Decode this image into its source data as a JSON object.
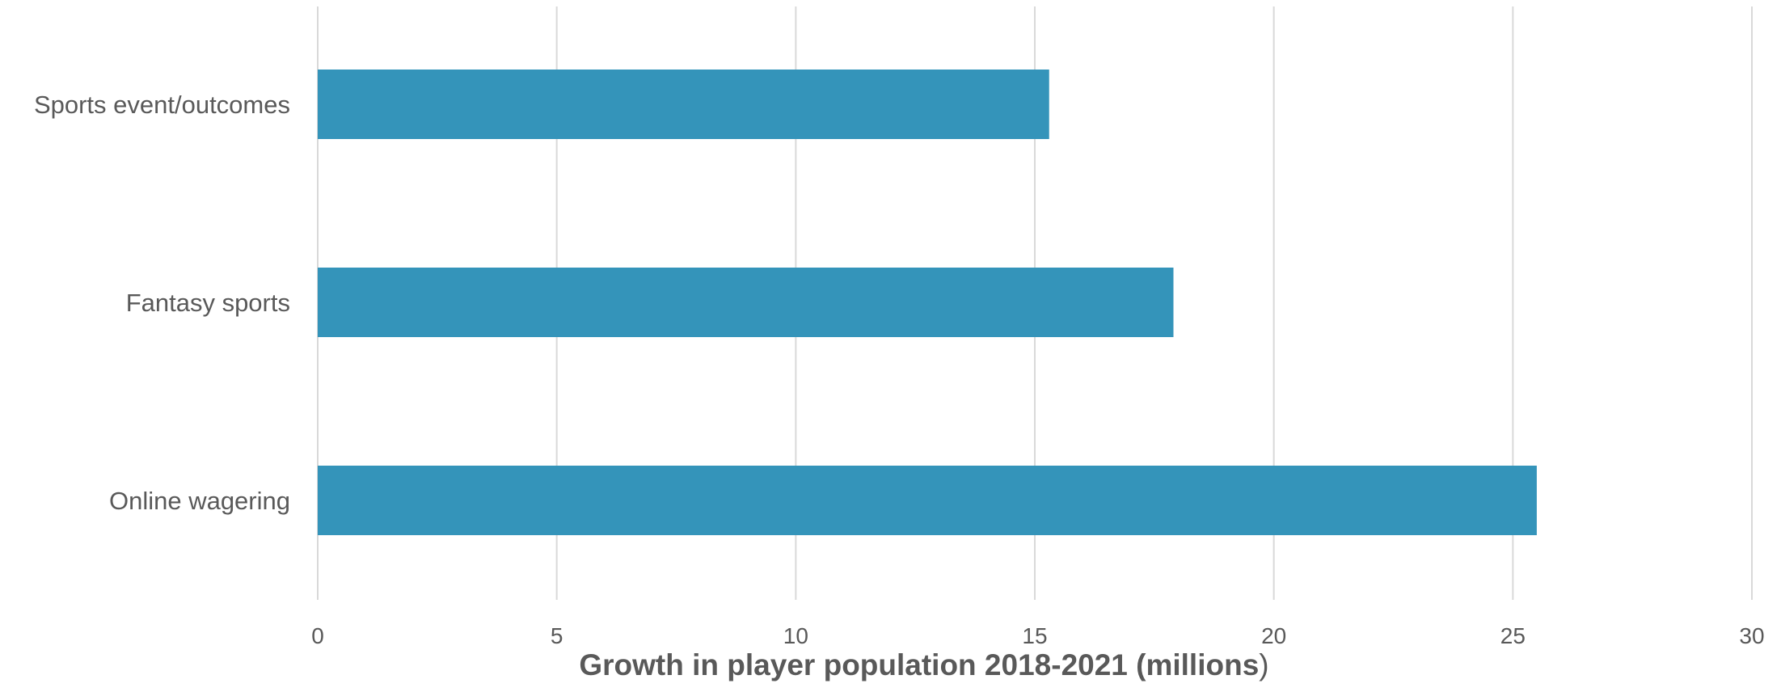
{
  "chart_data": {
    "type": "bar",
    "orientation": "horizontal",
    "categories": [
      "Sports event/outcomes",
      "Fantasy sports",
      "Online wagering"
    ],
    "values": [
      15.3,
      17.9,
      25.5
    ],
    "xlabel": "Growth in player population 2018-2021 (millions",
    "xlabel_suffix": ")",
    "ylabel": "",
    "xlim": [
      0,
      30
    ],
    "xticks": [
      "0",
      "5",
      "10",
      "15",
      "20",
      "25",
      "30"
    ],
    "grid": "vertical",
    "legend": "none",
    "colors": {
      "bar": "#3494ba",
      "grid": "#d9d9d9",
      "text": "#595959"
    }
  }
}
